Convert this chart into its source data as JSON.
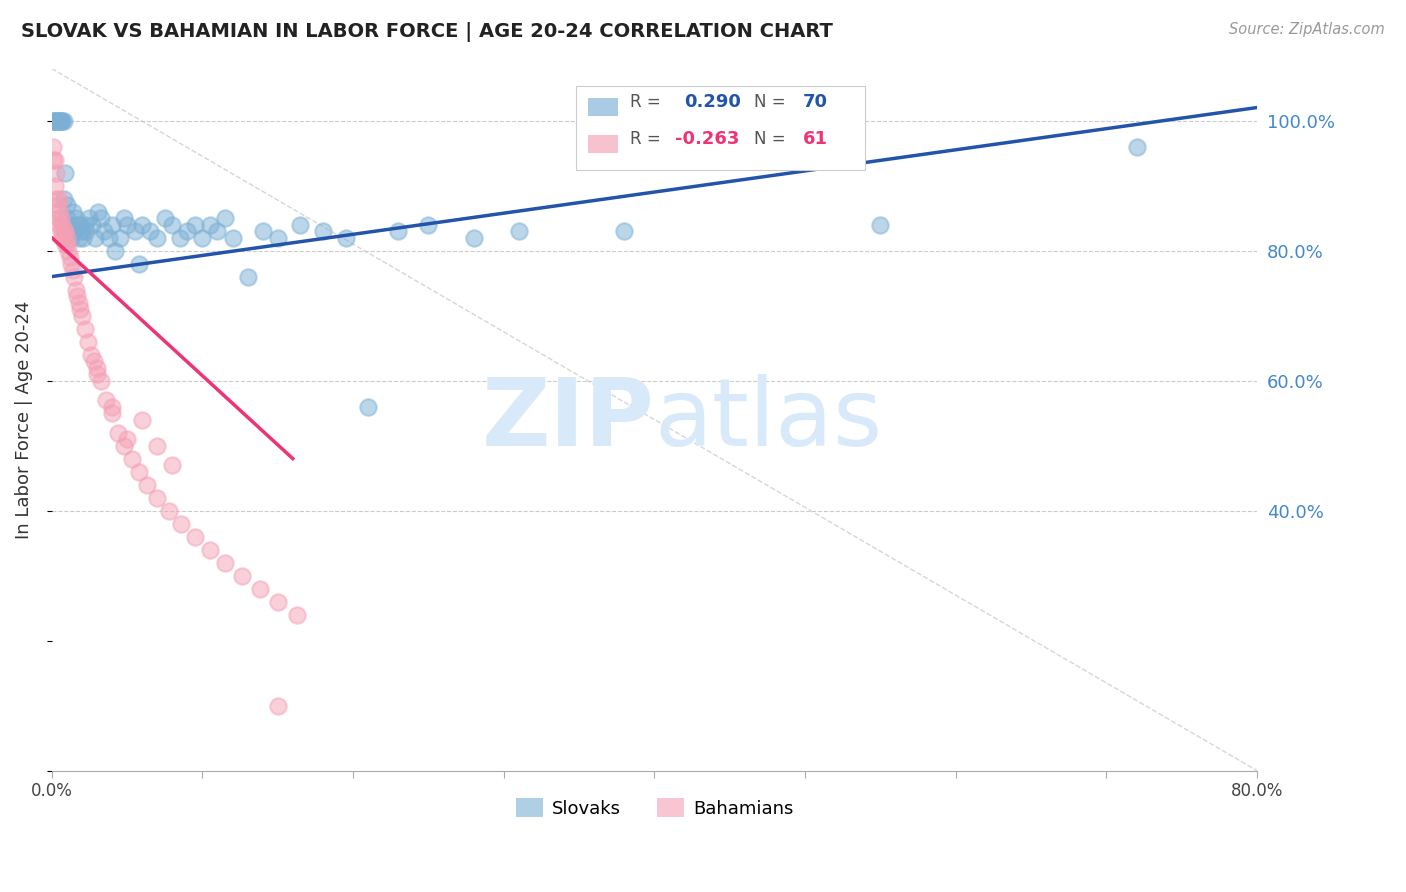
{
  "title": "SLOVAK VS BAHAMIAN IN LABOR FORCE | AGE 20-24 CORRELATION CHART",
  "source": "Source: ZipAtlas.com",
  "ylabel": "In Labor Force | Age 20-24",
  "right_yticks": [
    0.4,
    0.6,
    0.8,
    1.0
  ],
  "right_yticklabels": [
    "40.0%",
    "60.0%",
    "80.0%",
    "100.0%"
  ],
  "blue_color": "#7BAFD4",
  "pink_color": "#F4A0B5",
  "trend_blue": "#2255AA",
  "trend_pink": "#EE3377",
  "grid_color": "#CCCCCC",
  "right_axis_color": "#4488CC",
  "watermark_color": "#D8EAFA",
  "xlim": [
    0.0,
    0.8
  ],
  "ylim": [
    0.0,
    1.08
  ],
  "blue_dots_x": [
    0.001,
    0.001,
    0.002,
    0.002,
    0.003,
    0.004,
    0.005,
    0.005,
    0.006,
    0.006,
    0.007,
    0.008,
    0.008,
    0.009,
    0.01,
    0.01,
    0.011,
    0.012,
    0.013,
    0.014,
    0.015,
    0.016,
    0.017,
    0.018,
    0.019,
    0.02,
    0.021,
    0.022,
    0.023,
    0.025,
    0.027,
    0.029,
    0.031,
    0.033,
    0.035,
    0.038,
    0.04,
    0.042,
    0.045,
    0.048,
    0.05,
    0.055,
    0.058,
    0.06,
    0.065,
    0.07,
    0.075,
    0.08,
    0.085,
    0.09,
    0.095,
    0.1,
    0.105,
    0.11,
    0.115,
    0.12,
    0.13,
    0.14,
    0.15,
    0.165,
    0.18,
    0.195,
    0.21,
    0.23,
    0.25,
    0.28,
    0.31,
    0.38,
    0.55,
    0.72
  ],
  "blue_dots_y": [
    1.0,
    1.0,
    1.0,
    1.0,
    1.0,
    1.0,
    1.0,
    1.0,
    1.0,
    1.0,
    1.0,
    1.0,
    0.88,
    0.92,
    0.87,
    0.85,
    0.83,
    0.84,
    0.82,
    0.86,
    0.83,
    0.85,
    0.84,
    0.82,
    0.84,
    0.83,
    0.82,
    0.84,
    0.83,
    0.85,
    0.84,
    0.82,
    0.86,
    0.85,
    0.83,
    0.82,
    0.84,
    0.8,
    0.82,
    0.85,
    0.84,
    0.83,
    0.78,
    0.84,
    0.83,
    0.82,
    0.85,
    0.84,
    0.82,
    0.83,
    0.84,
    0.82,
    0.84,
    0.83,
    0.85,
    0.82,
    0.76,
    0.83,
    0.82,
    0.84,
    0.83,
    0.82,
    0.56,
    0.83,
    0.84,
    0.82,
    0.83,
    0.83,
    0.84,
    0.96
  ],
  "pink_dots_x": [
    0.001,
    0.001,
    0.002,
    0.002,
    0.003,
    0.003,
    0.004,
    0.004,
    0.005,
    0.005,
    0.005,
    0.006,
    0.006,
    0.007,
    0.007,
    0.008,
    0.008,
    0.009,
    0.009,
    0.01,
    0.01,
    0.011,
    0.012,
    0.013,
    0.014,
    0.015,
    0.016,
    0.017,
    0.018,
    0.019,
    0.02,
    0.022,
    0.024,
    0.026,
    0.028,
    0.03,
    0.033,
    0.036,
    0.04,
    0.044,
    0.048,
    0.053,
    0.058,
    0.063,
    0.07,
    0.078,
    0.086,
    0.095,
    0.105,
    0.115,
    0.126,
    0.138,
    0.15,
    0.163,
    0.03,
    0.04,
    0.05,
    0.06,
    0.07,
    0.08,
    0.15
  ],
  "pink_dots_y": [
    0.96,
    0.94,
    0.94,
    0.9,
    0.92,
    0.88,
    0.87,
    0.85,
    0.88,
    0.86,
    0.84,
    0.85,
    0.83,
    0.84,
    0.82,
    0.83,
    0.82,
    0.83,
    0.81,
    0.82,
    0.81,
    0.8,
    0.79,
    0.78,
    0.77,
    0.76,
    0.74,
    0.73,
    0.72,
    0.71,
    0.7,
    0.68,
    0.66,
    0.64,
    0.63,
    0.62,
    0.6,
    0.57,
    0.55,
    0.52,
    0.5,
    0.48,
    0.46,
    0.44,
    0.42,
    0.4,
    0.38,
    0.36,
    0.34,
    0.32,
    0.3,
    0.28,
    0.26,
    0.24,
    0.61,
    0.56,
    0.51,
    0.54,
    0.5,
    0.47,
    0.1
  ],
  "blue_trend_x": [
    0.0,
    0.8
  ],
  "blue_trend_y": [
    0.76,
    1.02
  ],
  "pink_trend_x": [
    0.0,
    0.16
  ],
  "pink_trend_y": [
    0.82,
    0.48
  ]
}
